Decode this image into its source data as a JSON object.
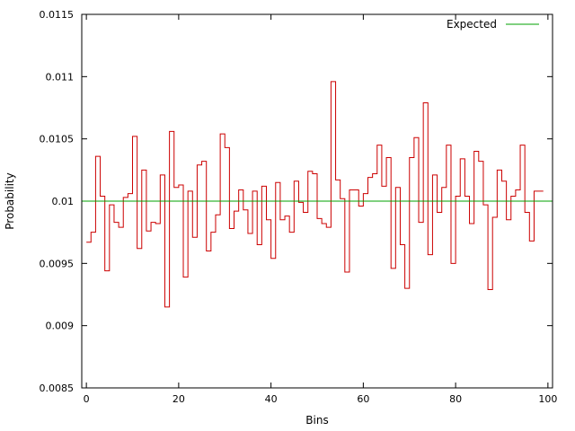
{
  "chart_data": {
    "type": "line",
    "title": "",
    "xlabel": "Bins",
    "ylabel": "Probability",
    "xlim": [
      -1,
      101
    ],
    "ylim": [
      0.0085,
      0.0115
    ],
    "x_ticks": [
      0,
      20,
      40,
      60,
      80,
      100
    ],
    "x_tick_labels": [
      "0",
      "20",
      "40",
      "60",
      "80",
      "100"
    ],
    "y_ticks": [
      0.0085,
      0.009,
      0.0095,
      0.01,
      0.0105,
      0.011,
      0.0115
    ],
    "y_tick_labels": [
      "0.0085",
      "0.009",
      "0.0095",
      "0.01",
      "0.0105",
      "0.011",
      "0.0115"
    ],
    "grid": false,
    "legend_position": "top-right",
    "series": [
      {
        "style": "steps",
        "color": "#cc0000",
        "x": [
          0,
          1,
          2,
          3,
          4,
          5,
          6,
          7,
          8,
          9,
          10,
          11,
          12,
          13,
          14,
          15,
          16,
          17,
          18,
          19,
          20,
          21,
          22,
          23,
          24,
          25,
          26,
          27,
          28,
          29,
          30,
          31,
          32,
          33,
          34,
          35,
          36,
          37,
          38,
          39,
          40,
          41,
          42,
          43,
          44,
          45,
          46,
          47,
          48,
          49,
          50,
          51,
          52,
          53,
          54,
          55,
          56,
          57,
          58,
          59,
          60,
          61,
          62,
          63,
          64,
          65,
          66,
          67,
          68,
          69,
          70,
          71,
          72,
          73,
          74,
          75,
          76,
          77,
          78,
          79,
          80,
          81,
          82,
          83,
          84,
          85,
          86,
          87,
          88,
          89,
          90,
          91,
          92,
          93,
          94,
          95,
          96,
          97,
          98
        ],
        "values": [
          0.00967,
          0.00975,
          0.01036,
          0.01004,
          0.00944,
          0.00997,
          0.00983,
          0.00979,
          0.01003,
          0.01006,
          0.01052,
          0.00962,
          0.01025,
          0.00976,
          0.00983,
          0.00982,
          0.01021,
          0.00915,
          0.01056,
          0.01011,
          0.01013,
          0.00939,
          0.01008,
          0.00971,
          0.01029,
          0.01032,
          0.0096,
          0.00975,
          0.00989,
          0.01054,
          0.01043,
          0.00978,
          0.00992,
          0.01009,
          0.00993,
          0.00974,
          0.01008,
          0.00965,
          0.01012,
          0.00985,
          0.00954,
          0.01015,
          0.00985,
          0.00988,
          0.00975,
          0.01016,
          0.00999,
          0.00991,
          0.01024,
          0.01022,
          0.00986,
          0.00982,
          0.00979,
          0.01096,
          0.01017,
          0.01002,
          0.00943,
          0.01009,
          0.01009,
          0.00996,
          0.01006,
          0.01019,
          0.01022,
          0.01045,
          0.01012,
          0.01035,
          0.00946,
          0.01011,
          0.00965,
          0.0093,
          0.01035,
          0.01051,
          0.00983,
          0.01079,
          0.00957,
          0.01021,
          0.00991,
          0.01011,
          0.01045,
          0.0095,
          0.01004,
          0.01034,
          0.01004,
          0.00982,
          0.0104,
          0.01032,
          0.00997,
          0.00929,
          0.00987,
          0.01025,
          0.01016,
          0.00985,
          0.01004,
          0.01009,
          0.01045,
          0.00991,
          0.00968,
          0.01008,
          0.01008
        ]
      },
      {
        "name": "Expected",
        "style": "line",
        "color": "#00a000",
        "x": [
          -1,
          101
        ],
        "values": [
          0.01,
          0.01
        ]
      }
    ]
  }
}
